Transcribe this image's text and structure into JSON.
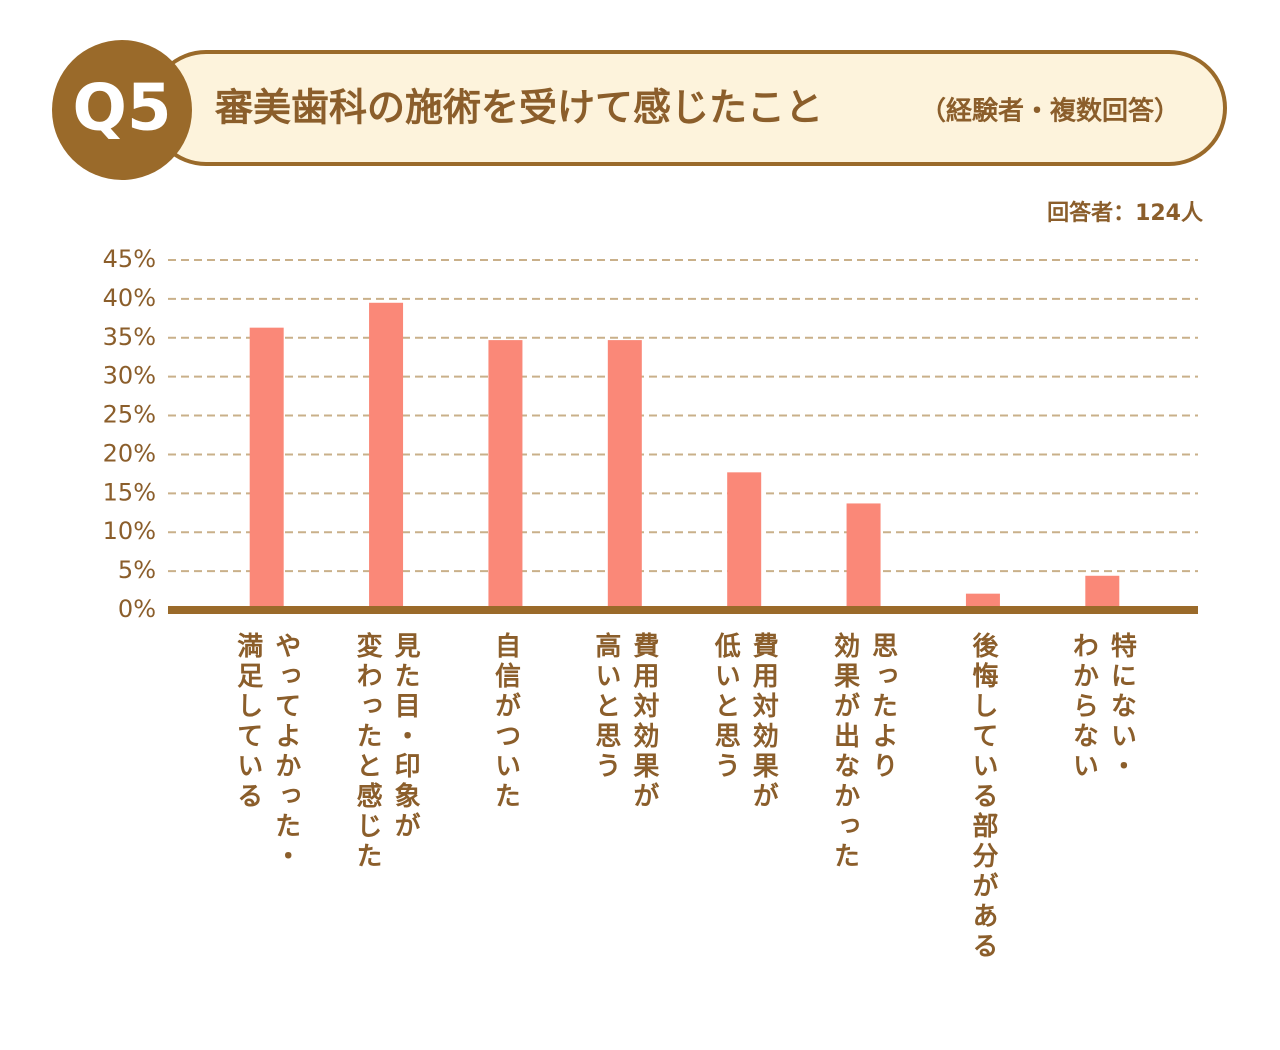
{
  "chart_data": {
    "type": "bar",
    "badge": "Q5",
    "title": "審美歯科の施術を受けて感じたこと",
    "subtitle": "（経験者・複数回答）",
    "note": "回答者：124人",
    "categories": [
      "やってよかった・\n満足している",
      "見た目・印象が\n変わったと感じた",
      "自信がついた",
      "費用対効果が\n高いと思う",
      "費用対効果が\n低いと思う",
      "思ったより\n効果が出なかった",
      "後悔している部分がある",
      "特にない・\nわからない"
    ],
    "values": [
      36.3,
      39.5,
      34.7,
      34.7,
      17.7,
      13.7,
      2.1,
      4.4
    ],
    "color": "#fa8878",
    "ylim": [
      0,
      45
    ],
    "yticks": [
      {
        "value": 0,
        "label": "0%"
      },
      {
        "value": 5,
        "label": "5%"
      },
      {
        "value": 10,
        "label": "10%"
      },
      {
        "value": 15,
        "label": "15%"
      },
      {
        "value": 20,
        "label": "20%"
      },
      {
        "value": 25,
        "label": "25%"
      },
      {
        "value": 30,
        "label": "30%"
      },
      {
        "value": 35,
        "label": "35%"
      },
      {
        "value": 40,
        "label": "40%"
      },
      {
        "value": 45,
        "label": "45%"
      }
    ],
    "grid": true
  }
}
